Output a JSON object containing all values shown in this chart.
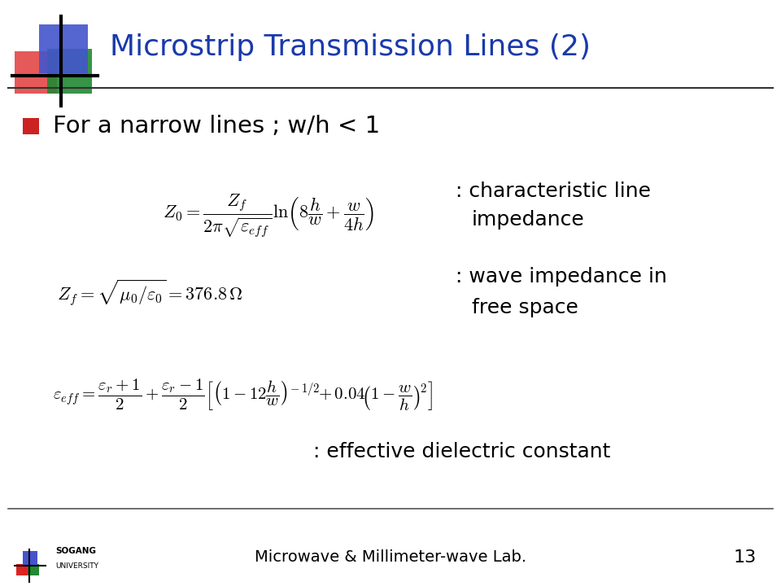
{
  "title": "Microstrip Transmission Lines (2)",
  "title_color": "#1a3aaa",
  "title_fontsize": 26,
  "bullet_text": "For a narrow lines ; w/h < 1",
  "bullet_fontsize": 21,
  "footer_text": "Microwave & Millimeter-wave Lab.",
  "page_number": "13",
  "bg_color": "#ffffff",
  "text_color": "#000000",
  "eq_color": "#000000",
  "label_color": "#000000",
  "bullet_color": "#cc2222",
  "header_line_color": "#333333",
  "footer_line_color": "#555555",
  "eq1_fontsize": 16,
  "eq2_fontsize": 16,
  "eq3_fontsize": 15,
  "label_fontsize": 18
}
